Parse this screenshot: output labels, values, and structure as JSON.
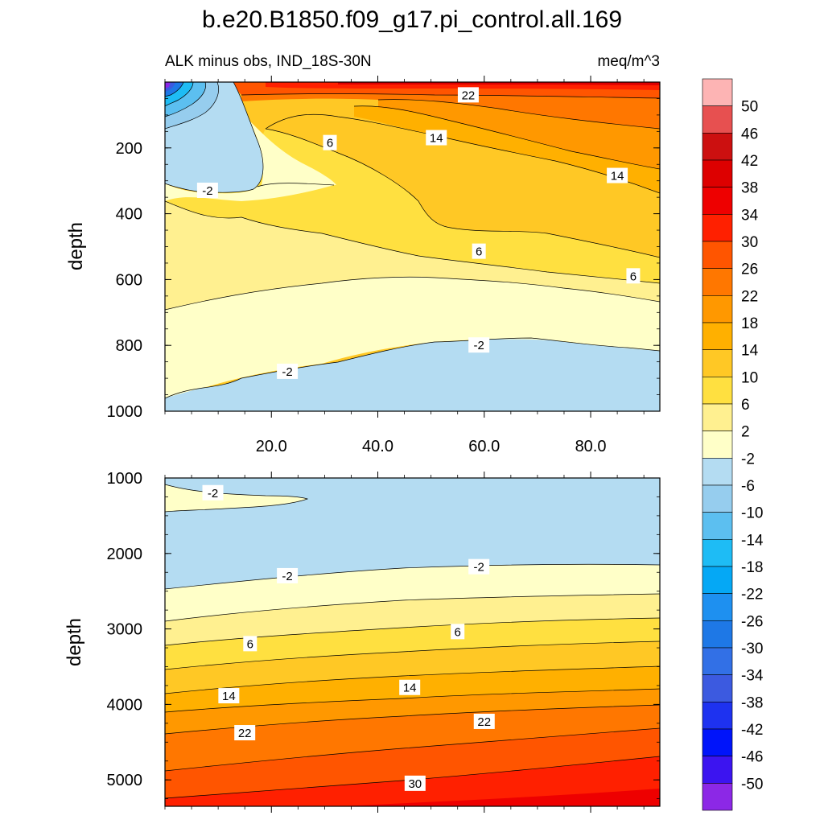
{
  "title": "b.e20.B1850.f09_g17.pi_control.all.169",
  "subtitle_left": "ALK minus obs, IND_18S-30N",
  "subtitle_right": "meq/m^3",
  "colorbar": {
    "labels": [
      "50",
      "46",
      "42",
      "38",
      "34",
      "30",
      "26",
      "22",
      "18",
      "14",
      "10",
      "6",
      "2",
      "-2",
      "-6",
      "-10",
      "-14",
      "-18",
      "-22",
      "-26",
      "-30",
      "-34",
      "-38",
      "-42",
      "-46",
      "-50"
    ],
    "colors": [
      "#fdb4b4",
      "#e75050",
      "#cc1010",
      "#dd0000",
      "#ee0000",
      "#ff2000",
      "#ff5500",
      "#ff7700",
      "#ff9800",
      "#ffb000",
      "#ffc825",
      "#ffe040",
      "#fff090",
      "#ffffc8",
      "#b4dcf2",
      "#96cdee",
      "#5cbff0",
      "#1ebcf5",
      "#05a8f5",
      "#1e90f0",
      "#1e78e6",
      "#3270e6",
      "#3c5ae0",
      "#1e32f0",
      "#0014fa",
      "#3c14f0",
      "#8c28e6"
    ]
  },
  "chart_data": [
    {
      "type": "contour",
      "panel": "top",
      "xlabel": "",
      "ylabel": "depth",
      "xlim": [
        0,
        93
      ],
      "ylim": [
        1000,
        0
      ],
      "xticks": [
        "20.0",
        "40.0",
        "60.0",
        "80.0"
      ],
      "xtick_values": [
        20,
        40,
        60,
        80
      ],
      "yticks": [
        "200",
        "400",
        "600",
        "800",
        "1000"
      ],
      "ytick_values": [
        200,
        400,
        600,
        800,
        1000
      ],
      "contour_labels": [
        {
          "text": "22",
          "x": 57,
          "y": 40
        },
        {
          "text": "14",
          "x": 51,
          "y": 170
        },
        {
          "text": "6",
          "x": 31,
          "y": 185
        },
        {
          "text": "14",
          "x": 85,
          "y": 285
        },
        {
          "text": "-2",
          "x": 8,
          "y": 330
        },
        {
          "text": "6",
          "x": 59,
          "y": 515
        },
        {
          "text": "6",
          "x": 88,
          "y": 590
        },
        {
          "text": "-2",
          "x": 59,
          "y": 800
        },
        {
          "text": "-2",
          "x": 23,
          "y": 880
        }
      ]
    },
    {
      "type": "contour",
      "panel": "bottom",
      "xlabel": "",
      "ylabel": "depth",
      "xlim": [
        0,
        93
      ],
      "ylim": [
        5350,
        1000
      ],
      "yticks": [
        "1000",
        "2000",
        "3000",
        "4000",
        "5000"
      ],
      "ytick_values": [
        1000,
        2000,
        3000,
        4000,
        5000
      ],
      "contour_labels": [
        {
          "text": "-2",
          "x": 9,
          "y": 1200
        },
        {
          "text": "-2",
          "x": 59,
          "y": 2180
        },
        {
          "text": "-2",
          "x": 23,
          "y": 2300
        },
        {
          "text": "6",
          "x": 55,
          "y": 3040
        },
        {
          "text": "6",
          "x": 16,
          "y": 3200
        },
        {
          "text": "14",
          "x": 46,
          "y": 3780
        },
        {
          "text": "14",
          "x": 12,
          "y": 3890
        },
        {
          "text": "22",
          "x": 60,
          "y": 4230
        },
        {
          "text": "22",
          "x": 15,
          "y": 4380
        },
        {
          "text": "30",
          "x": 47,
          "y": 5050
        }
      ]
    }
  ]
}
